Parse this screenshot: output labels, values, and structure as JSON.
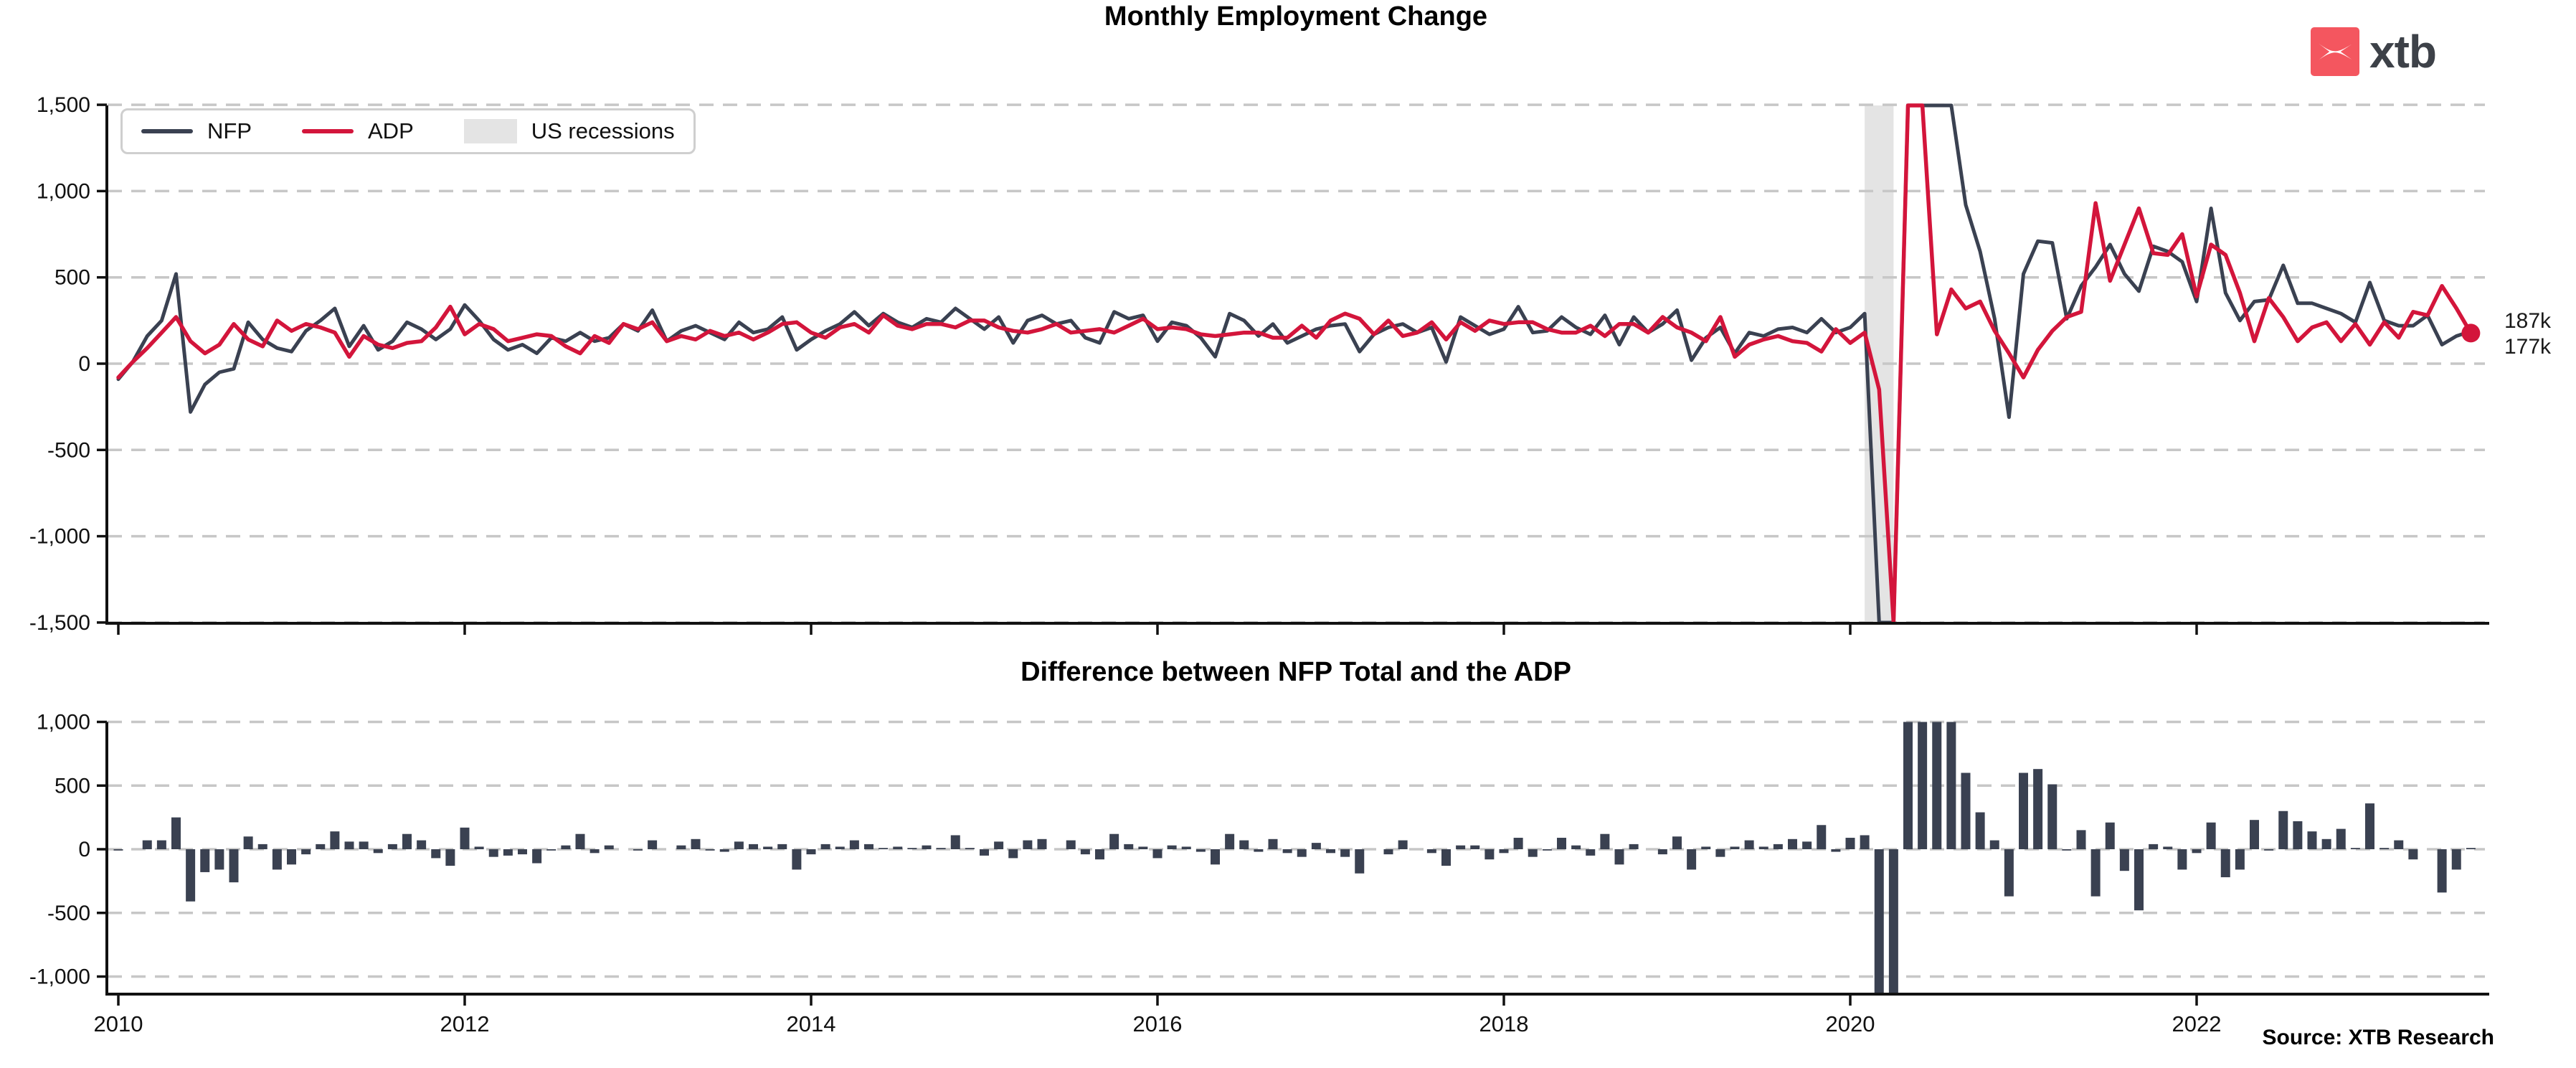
{
  "logo": {
    "text": "xtb",
    "square_color": "#f4565f",
    "text_color": "#3d4148"
  },
  "legend": {
    "items": [
      {
        "label": "NFP",
        "swatch": "line",
        "color": "#3a4151"
      },
      {
        "label": "ADP",
        "swatch": "line",
        "color": "#d3153b"
      },
      {
        "label": "US recessions",
        "swatch": "patch",
        "color": "#e4e4e4"
      }
    ]
  },
  "annotations": {
    "nfp_last_label": "187k",
    "adp_last_label": "177k"
  },
  "source": {
    "text": "Source: XTB Research"
  },
  "colors": {
    "nfp": "#3a4151",
    "adp": "#d3153b",
    "bar": "#3a4151",
    "recession_band": "#e4e4e4",
    "grid": "#c7c7c7",
    "axis": "#111111"
  },
  "chart_data": [
    {
      "type": "line",
      "title": "Monthly Employment Change",
      "unit": "thousands of jobs",
      "x": {
        "start": "2010-01",
        "end": "2023-08",
        "step": "month"
      },
      "xtick_labels": [
        "2010",
        "2012",
        "2014",
        "2016",
        "2018",
        "2020",
        "2022"
      ],
      "xtick_month_step": 24,
      "ylim": [
        -1500,
        1500
      ],
      "yticks": [
        1500,
        1000,
        500,
        0,
        -500,
        -1000,
        -1500
      ],
      "ytick_labels": [
        "1,500",
        "1,000",
        "500",
        "0",
        "-500",
        "-1,000",
        "-1,500"
      ],
      "grid": "horizontal-dashed",
      "legend_position": "upper-left",
      "recession_band": {
        "label": "US recessions",
        "from": "2020-02",
        "to": "2020-04"
      },
      "end_value_labels": {
        "NFP": "187k",
        "ADP": "177k"
      },
      "series": [
        {
          "name": "NFP",
          "color": "#3a4151",
          "values": [
            -90,
            10,
            160,
            250,
            520,
            -280,
            -120,
            -50,
            -30,
            240,
            140,
            90,
            70,
            190,
            250,
            320,
            100,
            220,
            80,
            130,
            240,
            200,
            140,
            200,
            340,
            250,
            140,
            80,
            110,
            60,
            150,
            130,
            180,
            130,
            150,
            230,
            190,
            310,
            130,
            190,
            220,
            180,
            140,
            240,
            180,
            200,
            270,
            80,
            140,
            190,
            230,
            300,
            220,
            290,
            240,
            210,
            260,
            240,
            320,
            260,
            200,
            270,
            120,
            250,
            280,
            230,
            250,
            150,
            120,
            300,
            260,
            280,
            130,
            240,
            220,
            150,
            40,
            290,
            250,
            160,
            230,
            120,
            160,
            200,
            220,
            230,
            70,
            170,
            210,
            230,
            180,
            210,
            10,
            270,
            220,
            170,
            200,
            330,
            180,
            190,
            270,
            210,
            170,
            280,
            110,
            270,
            180,
            230,
            310,
            20,
            150,
            210,
            60,
            180,
            160,
            200,
            210,
            180,
            260,
            180,
            210,
            290,
            -1680,
            -20680,
            2830,
            4850,
            1730,
            1580,
            920,
            650,
            260,
            -310,
            520,
            710,
            700,
            260,
            450,
            560,
            690,
            520,
            420,
            680,
            650,
            590,
            360,
            900,
            410,
            250,
            360,
            370,
            570,
            350,
            350,
            320,
            290,
            240,
            470,
            250,
            220,
            220,
            280,
            110,
            160,
            187
          ]
        },
        {
          "name": "ADP",
          "color": "#d3153b",
          "marker_end": true,
          "values": [
            -80,
            10,
            90,
            180,
            270,
            130,
            60,
            110,
            230,
            140,
            100,
            250,
            190,
            230,
            210,
            180,
            40,
            160,
            110,
            90,
            120,
            130,
            210,
            330,
            170,
            230,
            200,
            130,
            150,
            170,
            160,
            100,
            60,
            160,
            120,
            230,
            200,
            240,
            130,
            160,
            140,
            190,
            160,
            180,
            140,
            180,
            230,
            240,
            180,
            150,
            210,
            230,
            180,
            280,
            220,
            200,
            230,
            230,
            210,
            250,
            250,
            210,
            190,
            180,
            200,
            230,
            180,
            190,
            200,
            180,
            220,
            260,
            200,
            210,
            200,
            170,
            160,
            170,
            180,
            180,
            150,
            150,
            220,
            150,
            250,
            290,
            260,
            170,
            250,
            160,
            180,
            240,
            140,
            240,
            190,
            250,
            230,
            240,
            240,
            200,
            180,
            180,
            220,
            160,
            230,
            230,
            180,
            270,
            210,
            180,
            130,
            270,
            40,
            110,
            140,
            160,
            130,
            120,
            70,
            200,
            120,
            180,
            -150,
            -19500,
            1700,
            2370,
            170,
            430,
            320,
            360,
            190,
            60,
            -80,
            80,
            190,
            270,
            300,
            930,
            480,
            690,
            900,
            640,
            630,
            750,
            390,
            690,
            630,
            410,
            130,
            380,
            270,
            130,
            210,
            240,
            130,
            230,
            110,
            240,
            150,
            300,
            280,
            450,
            320,
            177
          ]
        }
      ]
    },
    {
      "type": "bar",
      "title": "Difference between NFP Total and the ADP",
      "values_derived_from": "NFP minus ADP (chart_data[0].series), clipped to ylim",
      "color": "#3a4151",
      "x": {
        "start": "2010-01",
        "end": "2023-08",
        "step": "month"
      },
      "xtick_labels": [
        "2010",
        "2012",
        "2014",
        "2016",
        "2018",
        "2020",
        "2022"
      ],
      "xtick_month_step": 24,
      "ylim": [
        -1140,
        1000
      ],
      "yticks": [
        1000,
        500,
        0,
        -500,
        -1000
      ],
      "ytick_labels": [
        "1,000",
        "500",
        "0",
        "-500",
        "-1,000"
      ],
      "grid": "horizontal-dashed"
    }
  ]
}
